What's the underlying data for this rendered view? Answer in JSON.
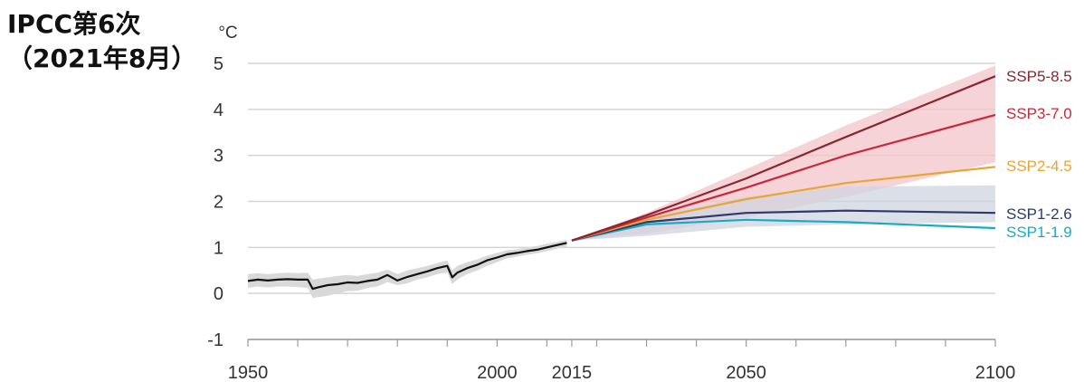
{
  "source_title": {
    "line1": "IPCC第6次",
    "line2": "（2021年8月）"
  },
  "chart_data": {
    "type": "line",
    "ylabel": "°C",
    "xlim": [
      1950,
      2100
    ],
    "ylim": [
      -1,
      5
    ],
    "yticks": [
      -1,
      0,
      1,
      2,
      3,
      4,
      5
    ],
    "ytick_labels": [
      "-1",
      "0",
      "1",
      "2",
      "3",
      "4",
      "5"
    ],
    "xtick_labels": [
      {
        "x": 1950,
        "label": "1950"
      },
      {
        "x": 2000,
        "label": "2000"
      },
      {
        "x": 2015,
        "label": "2015"
      },
      {
        "x": 2050,
        "label": "2050"
      },
      {
        "x": 2100,
        "label": "2100"
      }
    ],
    "xminor_ticks": [
      1950,
      1960,
      1970,
      1980,
      1990,
      2000,
      2010,
      2015,
      2020,
      2030,
      2040,
      2050,
      2060,
      2070,
      2080,
      2090,
      2100
    ],
    "grid": true,
    "historical": {
      "color": "#111111",
      "band_color": "#d9d9d9",
      "x": [
        1950,
        1952,
        1954,
        1956,
        1958,
        1960,
        1962,
        1963,
        1964,
        1966,
        1968,
        1970,
        1972,
        1974,
        1976,
        1978,
        1980,
        1982,
        1984,
        1986,
        1988,
        1990,
        1991,
        1992,
        1994,
        1996,
        1998,
        2000,
        2002,
        2004,
        2006,
        2008,
        2010,
        2012,
        2014
      ],
      "y": [
        0.27,
        0.3,
        0.28,
        0.3,
        0.31,
        0.3,
        0.3,
        0.1,
        0.13,
        0.18,
        0.2,
        0.24,
        0.23,
        0.27,
        0.3,
        0.4,
        0.28,
        0.36,
        0.42,
        0.48,
        0.55,
        0.6,
        0.35,
        0.45,
        0.55,
        0.62,
        0.72,
        0.78,
        0.85,
        0.88,
        0.92,
        0.95,
        1.0,
        1.05,
        1.1
      ],
      "band_lower": [
        0.12,
        0.15,
        0.13,
        0.15,
        0.15,
        0.14,
        0.12,
        -0.1,
        -0.08,
        -0.05,
        0.0,
        0.05,
        0.06,
        0.12,
        0.15,
        0.25,
        0.18,
        0.22,
        0.3,
        0.35,
        0.42,
        0.45,
        0.2,
        0.3,
        0.42,
        0.5,
        0.6,
        0.68,
        0.76,
        0.8,
        0.84,
        0.87,
        0.92,
        0.97,
        1.02
      ],
      "band_upper": [
        0.42,
        0.44,
        0.42,
        0.44,
        0.45,
        0.44,
        0.45,
        0.3,
        0.32,
        0.35,
        0.38,
        0.4,
        0.38,
        0.42,
        0.45,
        0.52,
        0.42,
        0.5,
        0.55,
        0.6,
        0.66,
        0.72,
        0.5,
        0.6,
        0.68,
        0.74,
        0.82,
        0.88,
        0.94,
        0.96,
        1.0,
        1.03,
        1.08,
        1.12,
        1.17
      ]
    },
    "bands": [
      {
        "color": "#f2c4c8",
        "x": [
          2015,
          2030,
          2050,
          2070,
          2100
        ],
        "lower": [
          1.15,
          1.3,
          1.65,
          2.1,
          2.85
        ],
        "upper": [
          1.15,
          1.75,
          2.7,
          3.65,
          4.95
        ]
      },
      {
        "color": "#cfd4e0",
        "x": [
          2015,
          2030,
          2050,
          2070,
          2100
        ],
        "lower": [
          1.15,
          1.25,
          1.45,
          1.5,
          1.55
        ],
        "upper": [
          1.15,
          1.65,
          2.1,
          2.32,
          2.35
        ]
      }
    ],
    "series": [
      {
        "name": "SSP5-8.5",
        "color": "#8b2530",
        "x": [
          2015,
          2030,
          2050,
          2070,
          2100
        ],
        "y": [
          1.15,
          1.7,
          2.5,
          3.4,
          4.72
        ]
      },
      {
        "name": "SSP3-7.0",
        "color": "#c8283a",
        "x": [
          2015,
          2030,
          2050,
          2070,
          2100
        ],
        "y": [
          1.15,
          1.65,
          2.3,
          3.0,
          3.88
        ]
      },
      {
        "name": "SSP2-4.5",
        "color": "#e8a533",
        "x": [
          2015,
          2030,
          2050,
          2070,
          2100
        ],
        "y": [
          1.15,
          1.6,
          2.05,
          2.4,
          2.75
        ]
      },
      {
        "name": "SSP1-2.6",
        "color": "#2d3a6b",
        "x": [
          2015,
          2030,
          2050,
          2070,
          2100
        ],
        "y": [
          1.15,
          1.55,
          1.75,
          1.8,
          1.75
        ]
      },
      {
        "name": "SSP1-1.9",
        "color": "#1aabc4",
        "x": [
          2015,
          2030,
          2050,
          2070,
          2100
        ],
        "y": [
          1.15,
          1.5,
          1.6,
          1.55,
          1.42
        ]
      }
    ]
  }
}
